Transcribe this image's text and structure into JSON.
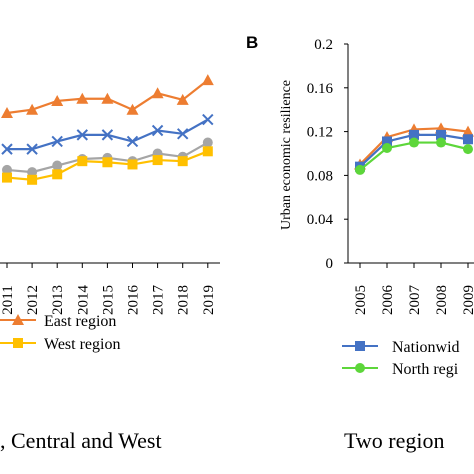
{
  "colors": {
    "east": "#ED7D31",
    "nationwide": "#4472C4",
    "central": "#A5A5A5",
    "west": "#FFC000",
    "north": "#5DD63A",
    "axis": "#000000"
  },
  "chart_data": [
    {
      "type": "line",
      "title": "",
      "caption": ", Central and West",
      "xlabel": "",
      "ylabel": "",
      "categories": [
        "2011",
        "2012",
        "2013",
        "2014",
        "2015",
        "2016",
        "2017",
        "2018",
        "2019"
      ],
      "series": [
        {
          "name": "East region",
          "color_key": "east",
          "marker": "triangle",
          "values": [
            0.137,
            0.14,
            0.148,
            0.15,
            0.15,
            0.14,
            0.155,
            0.149,
            0.167
          ]
        },
        {
          "name": "",
          "color_key": "nationwide",
          "marker": "x",
          "values": [
            0.104,
            0.104,
            0.111,
            0.117,
            0.117,
            0.111,
            0.121,
            0.118,
            0.131
          ]
        },
        {
          "name": "",
          "color_key": "central",
          "marker": "circle",
          "values": [
            0.085,
            0.083,
            0.089,
            0.095,
            0.096,
            0.093,
            0.1,
            0.097,
            0.11
          ]
        },
        {
          "name": "West region",
          "color_key": "west",
          "marker": "square",
          "values": [
            0.078,
            0.076,
            0.081,
            0.093,
            0.092,
            0.09,
            0.094,
            0.093,
            0.102
          ]
        }
      ],
      "legend": {
        "position": "bottom",
        "labels": [
          "East region",
          "West region"
        ]
      },
      "grid": false
    },
    {
      "type": "line",
      "panel_label": "B",
      "title": "",
      "caption": "Two region",
      "xlabel": "",
      "ylabel": "Urban economic resilience",
      "ylim": [
        0,
        0.2
      ],
      "yticks": [
        "0",
        "0.04",
        "0.08",
        "0.12",
        "0.16",
        "0.2"
      ],
      "categories": [
        "2005",
        "2006",
        "2007",
        "2008",
        "2009"
      ],
      "series": [
        {
          "name": "",
          "color_key": "east",
          "marker": "triangle",
          "values": [
            0.09,
            0.115,
            0.122,
            0.123,
            0.12
          ]
        },
        {
          "name": "Nationwid",
          "color_key": "nationwide",
          "marker": "square",
          "values": [
            0.088,
            0.111,
            0.117,
            0.117,
            0.113
          ]
        },
        {
          "name": "North regi",
          "color_key": "north",
          "marker": "circle",
          "values": [
            0.085,
            0.105,
            0.11,
            0.11,
            0.104
          ]
        }
      ],
      "legend": {
        "position": "bottom",
        "labels": [
          "Nationwid",
          "North regi"
        ]
      },
      "grid": false
    }
  ]
}
